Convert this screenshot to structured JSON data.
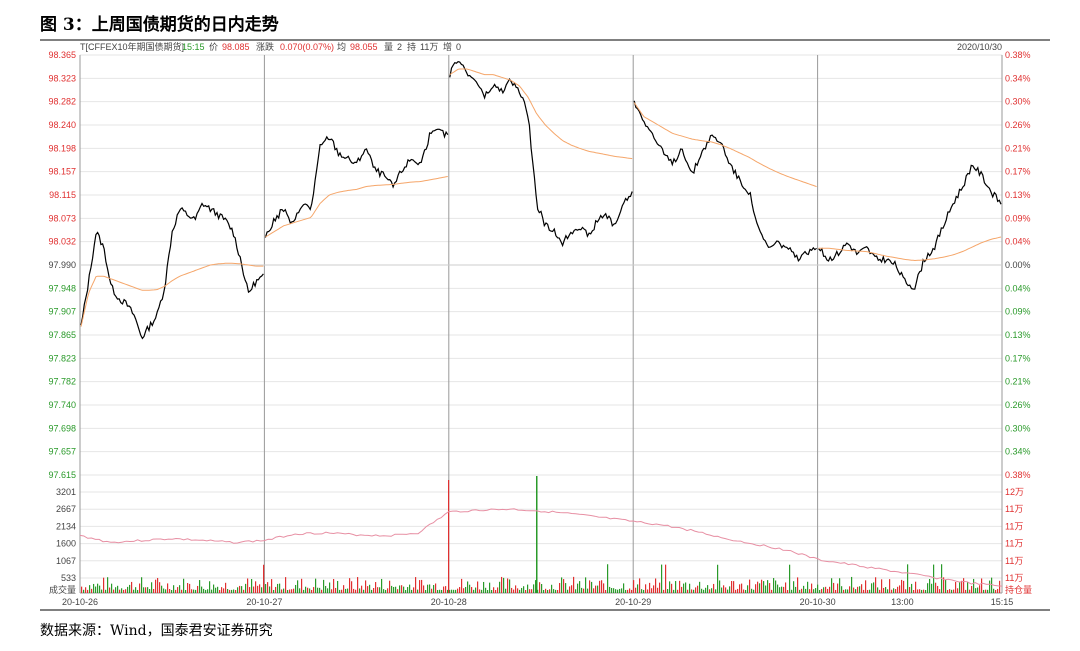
{
  "figure": {
    "title": "图 3：上周国债期货的日内走势",
    "source": "数据来源：Wind，国泰君安证券研究"
  },
  "header": {
    "symbol": "T[CFFEX10年期国债期货]",
    "time": "15:15",
    "price_label": "价",
    "price": "98.085",
    "change_label": "涨跌",
    "change": "0.070(0.07%)",
    "avg_label": "均",
    "avg": "98.055",
    "vol_label": "量",
    "vol": "2",
    "oi_label": "持",
    "oi": "11万",
    "oi_chg_label": "增",
    "oi_chg": "0",
    "date": "2020/10/30"
  },
  "colors": {
    "price_line": "#000000",
    "avg_line": "#f5a66a",
    "oi_line": "#e78fa3",
    "up": "#e03030",
    "down": "#2a9a2a",
    "grid": "#e6e6e6",
    "divider": "#999999"
  },
  "chart_data": {
    "type": "line",
    "price_ticks_left": [
      "98.365",
      "98.323",
      "98.282",
      "98.240",
      "98.198",
      "98.157",
      "98.115",
      "98.073",
      "98.032",
      "97.990",
      "97.948",
      "97.907",
      "97.865",
      "97.823",
      "97.782",
      "97.740",
      "97.698",
      "97.657",
      "97.615"
    ],
    "pct_ticks_right": [
      "0.38%",
      "0.34%",
      "0.30%",
      "0.26%",
      "0.21%",
      "0.17%",
      "0.13%",
      "0.09%",
      "0.04%",
      "0.00%",
      "0.04%",
      "0.09%",
      "0.13%",
      "0.17%",
      "0.21%",
      "0.26%",
      "0.30%",
      "0.34%",
      "0.38%"
    ],
    "vol_ticks_left": [
      "3201",
      "2667",
      "2134",
      "1600",
      "1067",
      "533"
    ],
    "oi_ticks_right": [
      "12万",
      "11万",
      "11万",
      "11万",
      "11万",
      "11万"
    ],
    "vol_label_left": "成交量",
    "oi_label_right": "持仓量",
    "x_labels": [
      "20-10-26",
      "20-10-27",
      "20-10-28",
      "20-10-29",
      "20-10-30",
      "13:00",
      "15:15"
    ],
    "ylim": [
      97.615,
      98.365
    ],
    "prev_close": 97.99,
    "days": [
      {
        "label": "20-10-26",
        "price": [
          97.88,
          97.96,
          98.05,
          98.02,
          97.95,
          97.93,
          97.92,
          97.9,
          97.86,
          97.88,
          97.9,
          97.95,
          98.05,
          98.09,
          98.08,
          98.07,
          98.1,
          98.09,
          98.08,
          98.07,
          98.05,
          98.0,
          97.94,
          97.96,
          97.97
        ],
        "avg": [
          97.88,
          97.94,
          97.97,
          97.97,
          97.965,
          97.96,
          97.955,
          97.95,
          97.945,
          97.945,
          97.946,
          97.952,
          97.962,
          97.97,
          97.975,
          97.98,
          97.985,
          97.99,
          97.992,
          97.993,
          97.993,
          97.992,
          97.99,
          97.988,
          97.988
        ]
      },
      {
        "label": "20-10-27",
        "price": [
          98.04,
          98.07,
          98.09,
          98.06,
          98.1,
          98.09,
          98.2,
          98.22,
          98.19,
          98.18,
          98.17,
          98.2,
          98.16,
          98.15,
          98.13,
          98.16,
          98.18,
          98.17,
          98.22,
          98.23,
          98.22
        ],
        "avg": [
          98.04,
          98.05,
          98.06,
          98.065,
          98.07,
          98.075,
          98.1,
          98.115,
          98.12,
          98.123,
          98.125,
          98.13,
          98.132,
          98.133,
          98.134,
          98.136,
          98.138,
          98.139,
          98.142,
          98.145,
          98.148
        ]
      },
      {
        "label": "20-10-28",
        "price": [
          98.33,
          98.36,
          98.33,
          98.32,
          98.29,
          98.31,
          98.3,
          98.32,
          98.3,
          98.26,
          98.1,
          98.06,
          98.05,
          98.03,
          98.05,
          98.06,
          98.04,
          98.07,
          98.08,
          98.06,
          98.1,
          98.12
        ],
        "avg": [
          98.33,
          98.34,
          98.34,
          98.335,
          98.33,
          98.33,
          98.325,
          98.32,
          98.31,
          98.29,
          98.26,
          98.24,
          98.225,
          98.212,
          98.204,
          98.198,
          98.193,
          98.19,
          98.187,
          98.184,
          98.182,
          98.18
        ]
      },
      {
        "label": "20-10-29",
        "price": [
          98.28,
          98.25,
          98.22,
          98.19,
          98.17,
          98.2,
          98.15,
          98.19,
          98.22,
          98.21,
          98.17,
          98.14,
          98.12,
          98.05,
          98.02,
          98.03,
          98.02,
          98.0,
          98.01,
          98.02
        ],
        "avg": [
          98.28,
          98.255,
          98.245,
          98.235,
          98.225,
          98.22,
          98.215,
          98.212,
          98.21,
          98.205,
          98.198,
          98.19,
          98.182,
          98.172,
          98.163,
          98.155,
          98.148,
          98.142,
          98.136,
          98.13
        ]
      },
      {
        "label": "20-10-30",
        "price": [
          98.02,
          98.0,
          98.01,
          98.03,
          98.01,
          98.02,
          98.0,
          98.0,
          97.99,
          97.96,
          97.95,
          98.0,
          98.02,
          98.06,
          98.1,
          98.13,
          98.17,
          98.15,
          98.12,
          98.1
        ],
        "avg": [
          98.02,
          98.02,
          98.018,
          98.016,
          98.015,
          98.014,
          98.01,
          98.006,
          98.003,
          98.0,
          97.998,
          97.999,
          98.001,
          98.004,
          98.008,
          98.014,
          98.022,
          98.03,
          98.036,
          98.04
        ]
      }
    ],
    "open_interest": [
      0.55,
      0.48,
      0.5,
      0.52,
      0.5,
      0.48,
      0.5,
      0.57,
      0.58,
      0.56,
      0.55,
      0.58,
      0.8,
      0.82,
      0.83,
      0.81,
      0.78,
      0.74,
      0.7,
      0.66,
      0.6,
      0.52,
      0.46,
      0.4,
      0.3,
      0.25,
      0.2,
      0.15,
      0.1,
      0.05,
      0.02
    ]
  }
}
